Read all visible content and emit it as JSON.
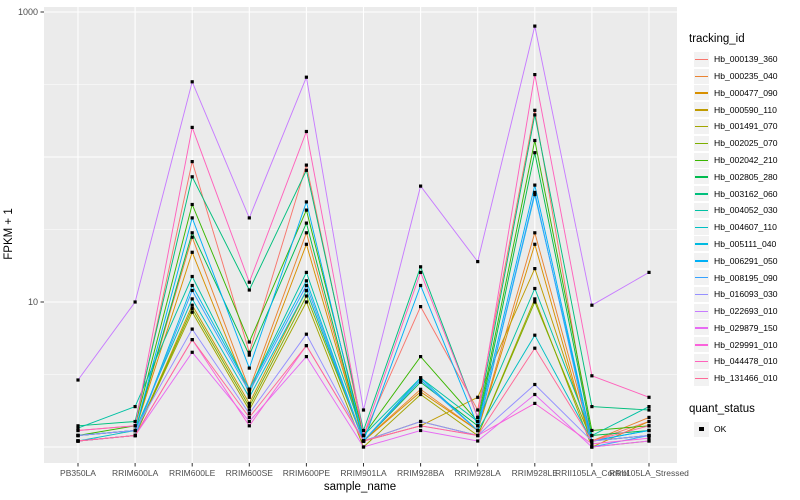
{
  "chart_data": {
    "type": "line",
    "title": "",
    "xlabel": "sample_name",
    "ylabel": "FPKM + 1",
    "y_scale": "log10",
    "ylim": [
      0.9,
      1100
    ],
    "grid": "on",
    "panel_bg_color": "#ebebeb",
    "gridline_color": "#ffffff",
    "point_color": "#000000",
    "point_shape": "square",
    "legend_position": "right",
    "y_ticks": [
      {
        "label": "1000",
        "value": 1000
      },
      {
        "label": "10",
        "value": 10
      }
    ],
    "y_major_gridlines": [
      1,
      10,
      100,
      1000
    ],
    "y_minor_gridlines": [
      3.162,
      31.62,
      316.2
    ],
    "categories": [
      "PB350LA",
      "RRIM600LA",
      "RRIM600LE",
      "RRIM600SE",
      "RRIM600PE",
      "RRIM901LA",
      "RRIM928BA",
      "RRIM928LA",
      "RRIM928LE",
      "RRII105LA_Control",
      "RRII105LA_Stressed"
    ],
    "legend_title": "tracking_id",
    "series": [
      {
        "name": "Hb_000139_360",
        "color": "#F8766D",
        "values": [
          1.3,
          1.4,
          93,
          4.5,
          88,
          1.2,
          9.3,
          1.8,
          210,
          1.1,
          1.5
        ]
      },
      {
        "name": "Hb_000235_040",
        "color": "#EA8331",
        "values": [
          1.2,
          1.3,
          28,
          2.5,
          30,
          1.1,
          2.5,
          1.3,
          30,
          1.1,
          1.6
        ]
      },
      {
        "name": "Hb_000477_090",
        "color": "#D89000",
        "values": [
          1.2,
          1.3,
          22,
          2.3,
          25,
          1.1,
          2.4,
          1.3,
          25,
          1.0,
          1.5
        ]
      },
      {
        "name": "Hb_000590_110",
        "color": "#C09B00",
        "values": [
          1.1,
          1.2,
          9.5,
          2.0,
          12,
          1.1,
          1.4,
          2.2,
          17,
          1.1,
          1.2
        ]
      },
      {
        "name": "Hb_001491_070",
        "color": "#A3A500",
        "values": [
          1.1,
          1.2,
          8.5,
          1.8,
          10,
          1.0,
          2.3,
          1.2,
          10.5,
          1.0,
          1.1
        ]
      },
      {
        "name": "Hb_002025_070",
        "color": "#7CAE00",
        "values": [
          1.1,
          1.2,
          9.0,
          1.9,
          11,
          1.1,
          1.5,
          1.2,
          10,
          1.1,
          1.2
        ]
      },
      {
        "name": "Hb_002042_210",
        "color": "#39B600",
        "values": [
          1.2,
          1.4,
          47,
          5.3,
          43,
          1.2,
          4.2,
          1.5,
          130,
          1.3,
          1.4
        ]
      },
      {
        "name": "Hb_002805_280",
        "color": "#00BB4E",
        "values": [
          1.2,
          1.3,
          30,
          4.3,
          35,
          1.1,
          2.8,
          1.4,
          107,
          1.2,
          1.3
        ]
      },
      {
        "name": "Hb_003162_060",
        "color": "#00BF7D",
        "values": [
          1.4,
          1.5,
          73,
          12.1,
          81,
          1.3,
          17.5,
          1.6,
          195,
          1.9,
          1.8
        ]
      },
      {
        "name": "Hb_004052_030",
        "color": "#00C1A3",
        "values": [
          1.35,
          1.9,
          15,
          2.5,
          16,
          1.2,
          3.0,
          1.5,
          12.4,
          1.2,
          1.9
        ]
      },
      {
        "name": "Hb_004607_110",
        "color": "#00BFC4",
        "values": [
          1.1,
          1.3,
          10.5,
          2.2,
          12,
          1.1,
          2.9,
          1.3,
          5.9,
          1.1,
          1.3
        ]
      },
      {
        "name": "Hb_005111_040",
        "color": "#00BAE0",
        "values": [
          1.1,
          1.2,
          13,
          2.5,
          14,
          1.1,
          3.0,
          1.3,
          55,
          1.1,
          1.2
        ]
      },
      {
        "name": "Hb_006291_050",
        "color": "#00B0F6",
        "values": [
          1.2,
          1.3,
          38,
          3.5,
          49,
          1.1,
          13,
          1.4,
          64,
          1.1,
          1.3
        ]
      },
      {
        "name": "Hb_008195_090",
        "color": "#35A2FF",
        "values": [
          1.1,
          1.2,
          12,
          2.4,
          13,
          1.1,
          2.9,
          1.3,
          57,
          1.0,
          1.2
        ]
      },
      {
        "name": "Hb_016093_030",
        "color": "#9590FF",
        "values": [
          1.2,
          1.3,
          6.5,
          1.7,
          6.0,
          1.1,
          1.5,
          1.2,
          2.7,
          1.1,
          1.2
        ]
      },
      {
        "name": "Hb_022693_010",
        "color": "#C77CFF",
        "values": [
          2.9,
          10,
          330,
          38,
          355,
          1.8,
          63,
          19,
          800,
          9.5,
          16
        ]
      },
      {
        "name": "Hb_029879_150",
        "color": "#E76BF3",
        "values": [
          1.1,
          1.2,
          4.5,
          1.5,
          4.2,
          1.0,
          1.3,
          1.1,
          2.3,
          1.0,
          1.1
        ]
      },
      {
        "name": "Hb_029991_010",
        "color": "#FA62DB",
        "values": [
          1.1,
          1.2,
          5.5,
          1.4,
          5.0,
          1.1,
          1.4,
          1.2,
          2.0,
          1.05,
          1.15
        ]
      },
      {
        "name": "Hb_044478_010",
        "color": "#FF62BC",
        "values": [
          1.3,
          1.4,
          160,
          13.7,
          150,
          1.2,
          16,
          1.6,
          370,
          3.1,
          2.2
        ]
      },
      {
        "name": "Hb_131466_010",
        "color": "#FF6A98",
        "values": [
          1.1,
          1.2,
          5.5,
          1.6,
          5.0,
          1.1,
          1.4,
          1.2,
          4.8,
          1.1,
          1.4
        ]
      }
    ],
    "quant_legend": {
      "title": "quant_status",
      "items": [
        {
          "label": "OK",
          "marker": "black-square"
        }
      ]
    }
  }
}
